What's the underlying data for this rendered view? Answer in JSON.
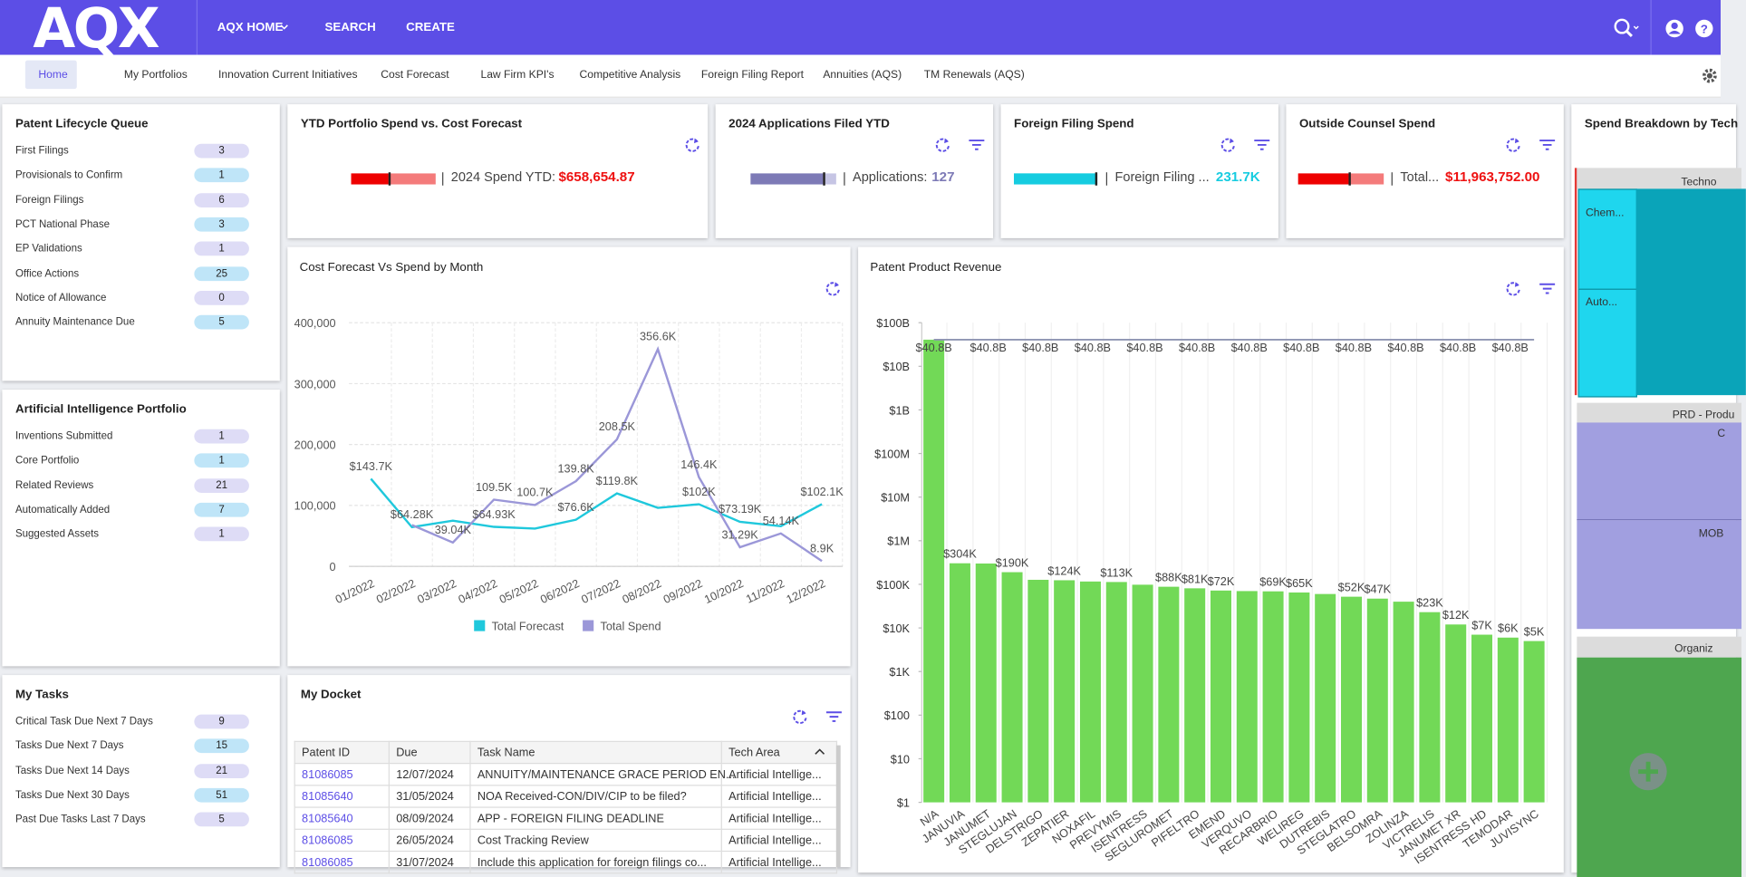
{
  "header": {
    "logo": "AQX",
    "nav": [
      "AQX HOME",
      "SEARCH",
      "CREATE"
    ]
  },
  "tabs": [
    "Home",
    "My Portfolios",
    "Innovation Current Initiatives",
    "Cost Forecast",
    "Law Firm KPI's",
    "Competitive Analysis",
    "Foreign Filing Report",
    "Annuities (AQS)",
    "TM Renewals (AQS)"
  ],
  "panels": [
    {
      "title": "Patent Lifecycle Queue",
      "items": [
        {
          "label": "First Filings",
          "count": 3
        },
        {
          "label": "Provisionals to Confirm",
          "count": 1
        },
        {
          "label": "Foreign Filings",
          "count": 6
        },
        {
          "label": "PCT National Phase",
          "count": 3
        },
        {
          "label": "EP Validations",
          "count": 1
        },
        {
          "label": "Office Actions",
          "count": 25
        },
        {
          "label": "Notice of Allowance",
          "count": 0
        },
        {
          "label": "Annuity Maintenance Due",
          "count": 5
        }
      ]
    },
    {
      "title": "Artificial Intelligence Portfolio",
      "items": [
        {
          "label": "Inventions Submitted",
          "count": 1
        },
        {
          "label": "Core Portfolio",
          "count": 1
        },
        {
          "label": "Related Reviews",
          "count": 21
        },
        {
          "label": "Automatically Added",
          "count": 7
        },
        {
          "label": "Suggested Assets",
          "count": 1
        }
      ]
    },
    {
      "title": "My Tasks",
      "items": [
        {
          "label": "Critical Task Due Next 7 Days",
          "count": 9
        },
        {
          "label": "Tasks Due Next 7 Days",
          "count": 15
        },
        {
          "label": "Tasks Due Next 14 Days",
          "count": 21
        },
        {
          "label": "Tasks Due Next 30 Days",
          "count": 51
        },
        {
          "label": "Past Due Tasks Last 7 Days",
          "count": 5
        }
      ]
    }
  ],
  "kpis": [
    {
      "title": "YTD Portfolio Spend vs. Cost Forecast",
      "label": "2024 Spend YTD:",
      "value": "$658,654.87"
    },
    {
      "title": "2024 Applications Filed YTD",
      "label": "Applications:",
      "value": "127"
    },
    {
      "title": "Foreign Filing Spend",
      "label": "Foreign Filing ...",
      "value": "231.7K"
    },
    {
      "title": "Outside Counsel Spend",
      "label": "Total...",
      "value": "$11,963,752.00"
    }
  ],
  "treemap": {
    "title": "Spend Breakdown by Tech",
    "labels": [
      "Techno",
      "Chem...",
      "Auto...",
      "PRD - Produ",
      "C",
      "MOB",
      "Organiz"
    ]
  },
  "docket": {
    "title": "My Docket",
    "columns": [
      "Patent ID",
      "Due",
      "Task Name",
      "Tech Area"
    ],
    "rows": [
      [
        "81086085",
        "12/07/2024",
        "ANNUITY/MAINTENANCE GRACE PERIOD EN...",
        "Artificial Intellige..."
      ],
      [
        "81085640",
        "31/05/2024",
        "NOA Received-CON/DIV/CIP to be filed?",
        "Artificial Intellige..."
      ],
      [
        "81085640",
        "08/09/2024",
        "APP - FOREIGN FILING DEADLINE",
        "Artificial Intellige..."
      ],
      [
        "81086085",
        "26/05/2024",
        "Cost Tracking Review",
        "Artificial Intellige..."
      ],
      [
        "81086085",
        "31/07/2024",
        "Include this application for foreign filings co...",
        "Artificial Intellige..."
      ]
    ]
  },
  "chart_data": [
    {
      "type": "line",
      "title": "Cost Forecast Vs Spend by Month",
      "categories": [
        "01/2022",
        "02/2022",
        "03/2022",
        "04/2022",
        "05/2022",
        "06/2022",
        "07/2022",
        "08/2022",
        "09/2022",
        "10/2022",
        "11/2022",
        "12/2022"
      ],
      "series": [
        {
          "name": "Total Forecast",
          "color": "#1fc8dc",
          "values": [
            143700,
            64280,
            75000,
            64930,
            62000,
            76600,
            119800,
            96000,
            102000,
            73190,
            66000,
            102100
          ],
          "value_labels": [
            "$143.7K",
            "$64.28K",
            null,
            "$64.93K",
            null,
            "$76.6K",
            "$119.8K",
            null,
            "$102K",
            "$73.19K",
            null,
            "$102.1K"
          ]
        },
        {
          "name": "Total Spend",
          "color": "#9b97d8",
          "values": [
            null,
            68000,
            39040,
            109500,
            100700,
            139800,
            208500,
            356600,
            146400,
            31290,
            54140,
            8900
          ],
          "value_labels": [
            null,
            null,
            "39.04K",
            "109.5K",
            "100.7K",
            "139.8K",
            "208.5K",
            "356.6K",
            "146.4K",
            "31.29K",
            "54.14K",
            "8.9K"
          ]
        }
      ],
      "ylim": [
        0,
        400000
      ],
      "yticks": [
        0,
        {
          "value": 100000,
          "label": "100,000"
        },
        {
          "value": 200000,
          "label": "200,000"
        },
        {
          "value": 300000,
          "label": "300,000"
        },
        {
          "value": 400000,
          "label": "400,000"
        }
      ],
      "grid": true,
      "legend": "bottom"
    },
    {
      "type": "bar",
      "title": "Patent Product Revenue",
      "log_scale": true,
      "categories": [
        "N/A",
        "JANUVIA",
        "JANUMET",
        "STEGLUJAN",
        "DELSTRIGO",
        "ZEPATIER",
        "NOXAFIL",
        "PREVYMIS",
        "ISENTRESS",
        "SEGLUROMET",
        "PIFELTRO",
        "EMEND",
        "VERQUVO",
        "RECARBRIO",
        "WELIREG",
        "DUTREBIS",
        "STEGLATRO",
        "BELSOMRA",
        "ZOLINZA",
        "VICTRELIS",
        "JANUMET XR",
        "ISENTRESS HD",
        "TEMODAR",
        "JUVISYNC"
      ],
      "series": [
        {
          "type": "bar",
          "color": "#72d957",
          "values": [
            40800000000,
            304000,
            300000,
            190000,
            127000,
            124000,
            116000,
            113000,
            98000,
            88000,
            81000,
            72000,
            70000,
            69000,
            65000,
            60000,
            52000,
            47000,
            40000,
            23000,
            12000,
            7000,
            6000,
            5000
          ],
          "value_labels": [
            "$40.8B",
            "$304K",
            null,
            "$190K",
            null,
            "$124K",
            null,
            "$113K",
            null,
            "$88K",
            "$81K",
            "$72K",
            null,
            "$69K",
            "$65K",
            null,
            "$52K",
            "$47K",
            null,
            "$23K",
            "$12K",
            "$7K",
            "$6K",
            "$5K"
          ]
        },
        {
          "type": "line",
          "color": "#8f95b3",
          "values": [
            40800000000,
            40800000000,
            40800000000,
            40800000000,
            40800000000,
            40800000000,
            40800000000,
            40800000000,
            40800000000,
            40800000000,
            40800000000,
            40800000000,
            40800000000,
            40800000000,
            40800000000,
            40800000000,
            40800000000,
            40800000000,
            40800000000,
            40800000000,
            40800000000,
            40800000000,
            40800000000,
            40800000000
          ],
          "value_labels": [
            null,
            null,
            "$40.8B",
            null,
            "$40.8B",
            null,
            "$40.8B",
            null,
            "$40.8B",
            null,
            "$40.8B",
            null,
            "$40.8B",
            null,
            "$40.8B",
            null,
            "$40.8B",
            null,
            "$40.8B",
            null,
            "$40.8B",
            null,
            "$40.8B",
            null
          ]
        }
      ],
      "ylim": [
        1,
        100000000000
      ],
      "yticks": [
        {
          "value": 1,
          "label": "$1"
        },
        {
          "value": 10,
          "label": "$10"
        },
        {
          "value": 100,
          "label": "$100"
        },
        {
          "value": 1000,
          "label": "$1K"
        },
        {
          "value": 10000,
          "label": "$10K"
        },
        {
          "value": 100000,
          "label": "$100K"
        },
        {
          "value": 1000000,
          "label": "$1M"
        },
        {
          "value": 10000000,
          "label": "$10M"
        },
        {
          "value": 100000000,
          "label": "$100M"
        },
        {
          "value": 1000000000,
          "label": "$1B"
        },
        {
          "value": 10000000000,
          "label": "$10B"
        },
        {
          "value": 100000000000,
          "label": "$100B"
        }
      ],
      "grid": false
    }
  ]
}
